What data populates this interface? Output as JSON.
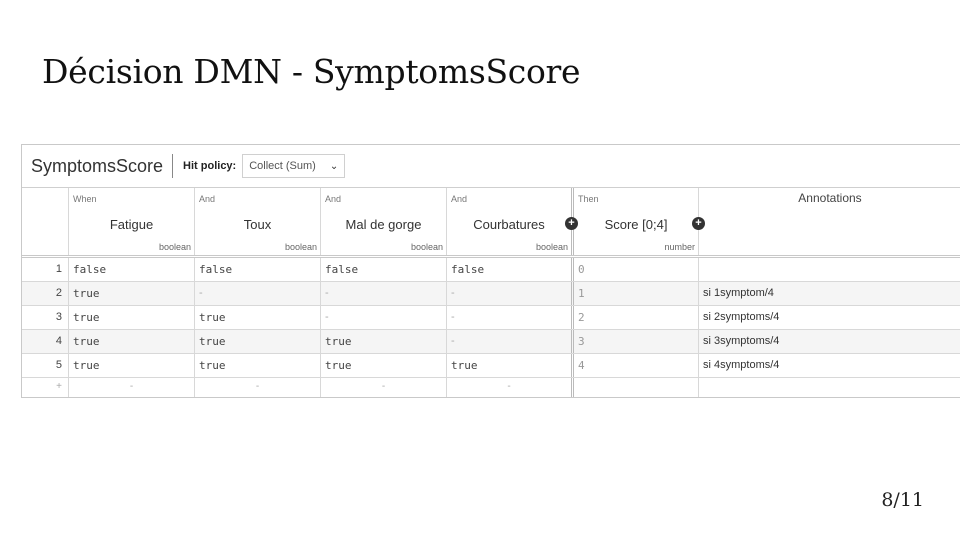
{
  "slide": {
    "title": "Décision DMN - SymptomsScore",
    "page": "8/11"
  },
  "dmn": {
    "table_name": "SymptomsScore",
    "hit_policy_label": "Hit policy:",
    "hit_policy_value": "Collect (Sum)",
    "columns": [
      {
        "kind": "When",
        "name": "Fatigue",
        "type": "boolean"
      },
      {
        "kind": "And",
        "name": "Toux",
        "type": "boolean"
      },
      {
        "kind": "And",
        "name": "Mal de gorge",
        "type": "boolean"
      },
      {
        "kind": "And",
        "name": "Courbatures",
        "type": "boolean"
      },
      {
        "kind": "Then",
        "name": "Score [0;4]",
        "type": "number"
      }
    ],
    "annotations_header": "Annotations",
    "rows": [
      {
        "idx": "1",
        "cells": [
          "false",
          "false",
          "false",
          "false"
        ],
        "out": "0",
        "ann": ""
      },
      {
        "idx": "2",
        "cells": [
          "true",
          "-",
          "-",
          "-"
        ],
        "out": "1",
        "ann": "si 1symptom/4"
      },
      {
        "idx": "3",
        "cells": [
          "true",
          "true",
          "-",
          "-"
        ],
        "out": "2",
        "ann": "si 2symptoms/4"
      },
      {
        "idx": "4",
        "cells": [
          "true",
          "true",
          "true",
          "-"
        ],
        "out": "3",
        "ann": "si 3symptoms/4"
      },
      {
        "idx": "5",
        "cells": [
          "true",
          "true",
          "true",
          "true"
        ],
        "out": "4",
        "ann": "si 4symptoms/4"
      }
    ],
    "add_row": {
      "plus": "+",
      "placeholder": "-"
    },
    "plus_symbol": "+",
    "chevron": "⌄"
  }
}
